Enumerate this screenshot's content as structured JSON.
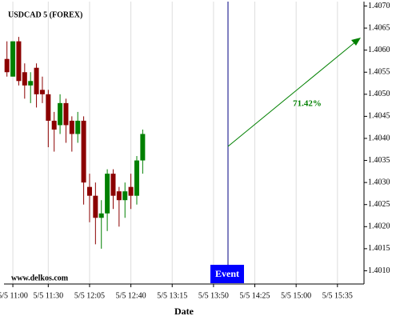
{
  "chart_data": {
    "type": "candlestick",
    "title": "USDCAD 5 (FOREX)",
    "watermark": "www.delkos.com",
    "x_label": "Date",
    "annotations": {
      "event_label": "Event",
      "arrow_label": "71.42%"
    },
    "categories": [
      null,
      "5/5 11:00",
      null,
      null,
      null,
      null,
      null,
      "5/5 11:30",
      null,
      null,
      null,
      null,
      null,
      null,
      "5/5 12:05",
      null,
      null,
      null,
      null,
      null,
      null,
      "5/5 12:40",
      null,
      null,
      null,
      null,
      null,
      null,
      "5/5 13:15",
      null,
      null,
      null,
      null,
      null,
      null,
      "5/5 13:50",
      null,
      null,
      null,
      null,
      null,
      null,
      "5/5 14:25",
      null,
      null,
      null,
      null,
      null,
      null,
      "5/5 15:00",
      null,
      null,
      null,
      null,
      null,
      null,
      "5/5 15:35",
      null,
      null,
      null,
      null
    ],
    "series": [
      {
        "up_color": "#008000",
        "down_color": "#8b0000",
        "open": [
          1.4058,
          1.4054,
          1.4062,
          1.4055,
          1.4052,
          1.4056,
          1.4051,
          1.405,
          1.4044,
          1.4043,
          1.4048,
          1.4044,
          1.4041,
          1.4044,
          1.4029,
          1.4027,
          1.4022,
          1.4023,
          1.4032,
          1.4028,
          1.4026,
          1.4029,
          1.4027,
          1.4035,
          null,
          null,
          null,
          null,
          null,
          null,
          null,
          null,
          null,
          null,
          null,
          null,
          null,
          null,
          null,
          null,
          null,
          null,
          null,
          null,
          null,
          null,
          null,
          null,
          null,
          null,
          null,
          null,
          null,
          null,
          null,
          null,
          null,
          null,
          null,
          null,
          null
        ],
        "high": [
          1.4062,
          1.4062,
          1.4063,
          1.4057,
          1.4055,
          1.4057,
          1.4054,
          1.4051,
          1.4046,
          1.405,
          1.4049,
          1.4045,
          1.4046,
          1.4045,
          1.4032,
          1.403,
          1.4026,
          1.4033,
          1.4033,
          1.4029,
          1.403,
          1.4032,
          1.4036,
          1.4042,
          null,
          null,
          null,
          null,
          null,
          null,
          null,
          null,
          null,
          null,
          null,
          null,
          null,
          null,
          null,
          null,
          null,
          null,
          null,
          null,
          null,
          null,
          null,
          null,
          null,
          null,
          null,
          null,
          null,
          null,
          null,
          null,
          null,
          null,
          null,
          null,
          null
        ],
        "low": [
          1.4054,
          1.4054,
          1.4052,
          1.4049,
          1.4048,
          1.4047,
          1.4048,
          1.4038,
          1.4037,
          1.4041,
          1.4039,
          1.4037,
          1.4039,
          1.4025,
          1.4021,
          1.4016,
          1.4015,
          1.4019,
          1.4024,
          1.402,
          1.4022,
          1.4024,
          1.4025,
          1.4032,
          null,
          null,
          null,
          null,
          null,
          null,
          null,
          null,
          null,
          null,
          null,
          null,
          null,
          null,
          null,
          null,
          null,
          null,
          null,
          null,
          null,
          null,
          null,
          null,
          null,
          null,
          null,
          null,
          null,
          null,
          null,
          null,
          null,
          null,
          null,
          null,
          null
        ],
        "close": [
          1.4055,
          1.4062,
          1.4053,
          1.4052,
          1.4053,
          1.405,
          1.405,
          1.4044,
          1.4042,
          1.4048,
          1.4043,
          1.4041,
          1.4044,
          1.403,
          1.4027,
          1.4022,
          1.4023,
          1.4032,
          1.4027,
          1.4026,
          1.4028,
          1.4027,
          1.4035,
          1.4041,
          null,
          null,
          null,
          null,
          null,
          null,
          null,
          null,
          null,
          null,
          null,
          null,
          null,
          null,
          null,
          null,
          null,
          null,
          null,
          null,
          null,
          null,
          null,
          null,
          null,
          null,
          null,
          null,
          null,
          null,
          null,
          null,
          null,
          null,
          null,
          null,
          null
        ]
      }
    ],
    "ylim": [
      1.4007,
      1.4071
    ],
    "yticks": [
      {
        "value": 1.401,
        "label": "1.4010"
      },
      1.4015,
      {
        "value": 1.402,
        "label": "1.4020"
      },
      1.4025,
      {
        "value": 1.403,
        "label": "1.4030"
      },
      1.4035,
      {
        "value": 1.404,
        "label": "1.4040"
      },
      1.4045,
      {
        "value": 1.405,
        "label": "1.4050"
      },
      1.4055,
      {
        "value": 1.406,
        "label": "1.4060"
      },
      1.4065,
      {
        "value": 1.407,
        "label": "1.4070"
      }
    ],
    "grid": true
  }
}
